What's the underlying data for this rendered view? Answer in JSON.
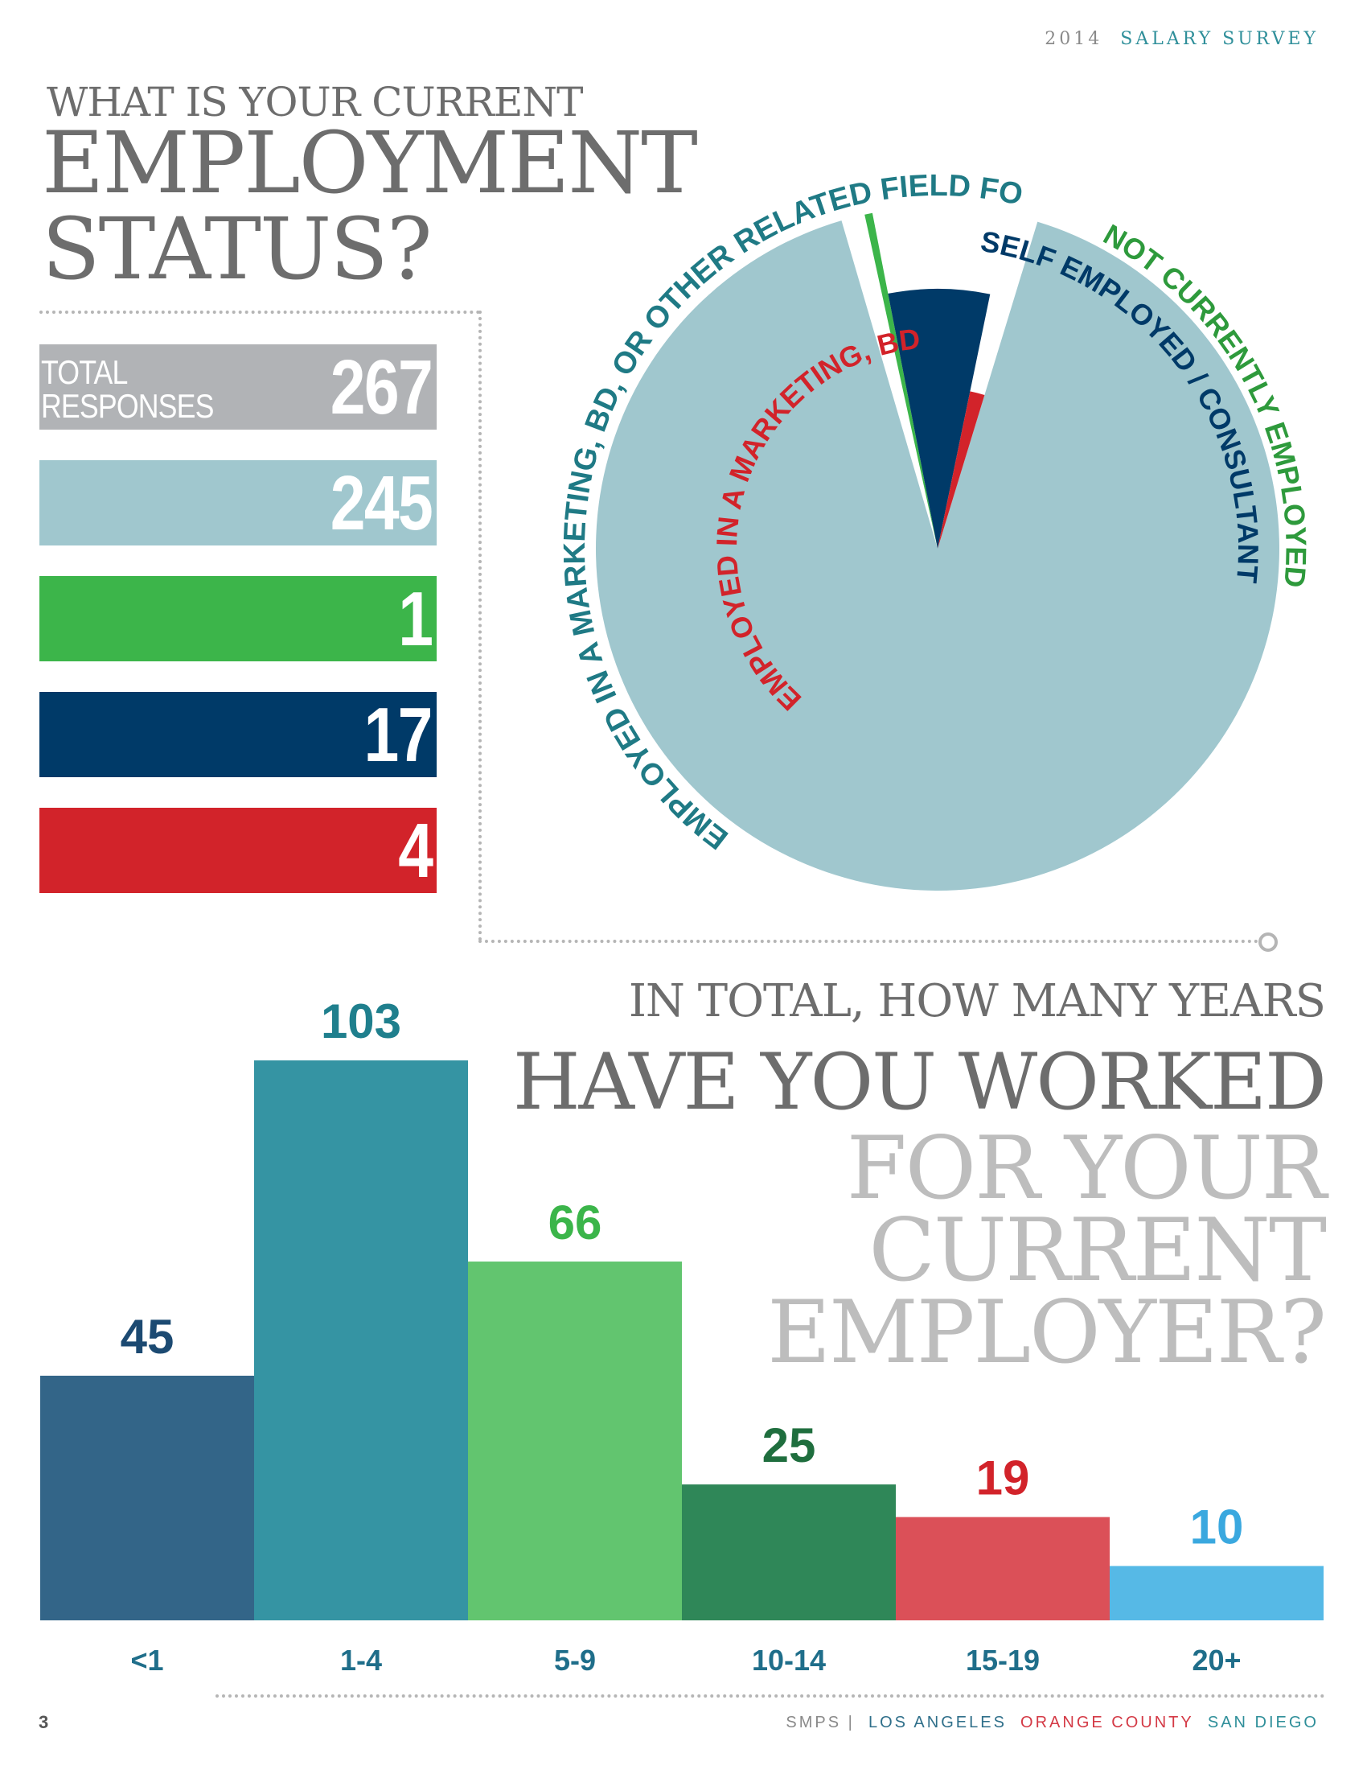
{
  "header": {
    "year": "2014",
    "title": "SALARY SURVEY"
  },
  "question1": {
    "line1": "WHAT IS YOUR CURRENT",
    "line2": "EMPLOYMENT",
    "line3": "STATUS?"
  },
  "total": {
    "label_line1": "TOTAL",
    "label_line2": "RESPONSES",
    "value": "267"
  },
  "stats": [
    {
      "value": "245",
      "color": "#a0c7ce"
    },
    {
      "value": "1",
      "color": "#3cb54a"
    },
    {
      "value": "17",
      "color": "#003a68"
    },
    {
      "value": "4",
      "color": "#d2232a"
    }
  ],
  "question2": {
    "line1": "IN TOTAL, HOW MANY YEARS",
    "line2": "HAVE YOU WORKED",
    "line3": "FOR YOUR",
    "line4": "CURRENT",
    "line5": "EMPLOYER?"
  },
  "footer": {
    "page": "3",
    "org": "SMPS |",
    "la": "LOS ANGELES",
    "oc": "ORANGE COUNTY",
    "sd": "SAN DIEGO"
  },
  "chart_data": [
    {
      "type": "pie",
      "slices": [
        {
          "label": "EMPLOYED IN A MARKETING, BD, OR OTHER RELATED FIELD FOR AN A/E/C FIRM",
          "value": 245,
          "color": "#a0c7ce",
          "label_color": "#1f7a85"
        },
        {
          "label": "NOT CURRENTLY EMPLOYED",
          "value": 1,
          "color": "#3cb54a",
          "label_color": "#2e9a3c"
        },
        {
          "label": "SELF EMPLOYED / CONSULTANT",
          "value": 17,
          "color": "#003a68",
          "label_color": "#003a68"
        },
        {
          "label": "EMPLOYED IN A MARKETING, BD, OR OTHER RELATED FIELD FOR A NON-A/E/C FIRM",
          "value": 4,
          "color": "#d2232a",
          "label_color": "#d2232a"
        }
      ]
    },
    {
      "type": "bar",
      "categories": [
        "<1",
        "1-4",
        "5-9",
        "10-14",
        "15-19",
        "20+"
      ],
      "values": [
        45,
        103,
        66,
        25,
        19,
        10
      ],
      "colors": [
        "#336588",
        "#3594a3",
        "#62c56f",
        "#2f8758",
        "#db5058",
        "#56b9e6"
      ],
      "label_colors": [
        "#1c4a72",
        "#1f7f8d",
        "#3bb54a",
        "#1f6e3e",
        "#d2232a",
        "#3aa8df"
      ],
      "tick_color": "#1f6e8a",
      "ylim": [
        0,
        103
      ]
    }
  ]
}
